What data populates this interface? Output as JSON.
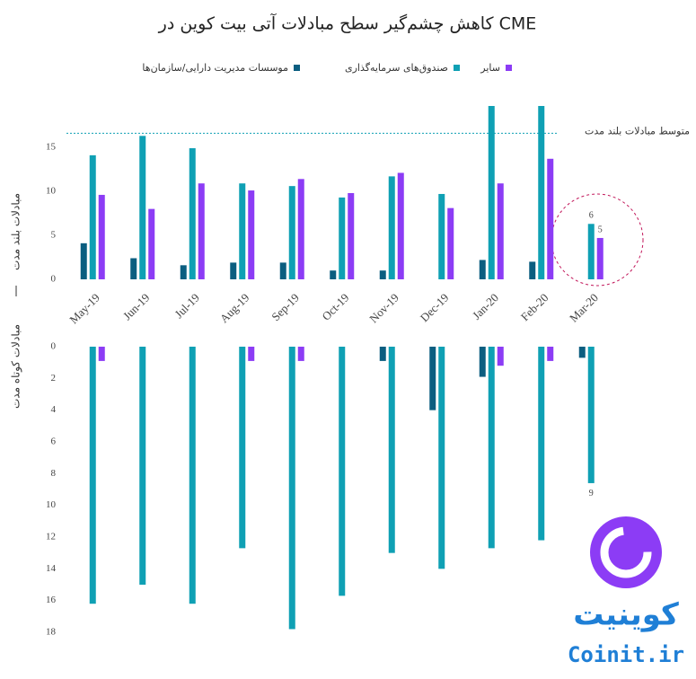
{
  "chart_data": [
    {
      "type": "bar",
      "title": "کاهش چشم‌گیر سطح مبادلات آتی بیت کوین در CME",
      "y_label": "مبادلات بلند مدت",
      "categories": [
        "May-19",
        "Jun-19",
        "Jul-19",
        "Aug-19",
        "Sep-19",
        "Oct-19",
        "Nov-19",
        "Dec-19",
        "Jan-20",
        "Feb-20",
        "Mar-20"
      ],
      "series": [
        {
          "name": "موسسات مدیریت دارایی/سازمان‌ها",
          "color": "#0b5e80",
          "values": [
            4.1,
            2.4,
            1.6,
            1.9,
            1.9,
            1.0,
            1.0,
            null,
            2.2,
            2.0,
            null
          ]
        },
        {
          "name": "صندوق‌های سرمایه‌گذاری",
          "color": "#0fa0b4",
          "values": [
            14.1,
            16.3,
            14.9,
            10.9,
            10.6,
            9.3,
            11.7,
            9.7,
            19.7,
            19.7,
            6.3
          ],
          "value_labels": [
            null,
            null,
            null,
            null,
            null,
            null,
            null,
            null,
            null,
            null,
            "6"
          ]
        },
        {
          "name": "سایر",
          "color": "#8c3cf5",
          "values": [
            9.6,
            8.0,
            10.9,
            10.1,
            11.4,
            9.8,
            12.1,
            8.1,
            10.9,
            13.7,
            4.7
          ],
          "value_labels": [
            null,
            null,
            null,
            null,
            null,
            null,
            null,
            null,
            null,
            null,
            "5"
          ]
        }
      ],
      "ylim": [
        0,
        19.7
      ],
      "yticks": [
        0,
        5,
        10,
        15
      ],
      "reference_line": {
        "value": 16.6,
        "label": "متوسط مبادلات بلند مدت"
      }
    },
    {
      "type": "bar",
      "y_label": "مبادلات کوتاه مدت",
      "inverted": true,
      "series": [
        {
          "color": "#0b5e80",
          "values": [
            null,
            null,
            null,
            null,
            null,
            null,
            0.9,
            4.0,
            1.9,
            null,
            0.7
          ]
        },
        {
          "color": "#0fa0b4",
          "values": [
            16.2,
            15.0,
            16.2,
            12.7,
            17.8,
            15.7,
            13.0,
            14.0,
            12.7,
            12.2,
            8.6
          ],
          "value_labels": [
            null,
            null,
            null,
            null,
            null,
            null,
            null,
            null,
            null,
            null,
            "9"
          ]
        },
        {
          "color": "#8c3cf5",
          "values": [
            0.9,
            null,
            null,
            0.9,
            0.9,
            null,
            null,
            null,
            1.2,
            0.9,
            null
          ]
        }
      ],
      "ylim": [
        0,
        18
      ],
      "yticks": [
        0,
        2,
        4,
        6,
        8,
        10,
        12,
        14,
        16,
        18
      ]
    }
  ],
  "logo": {
    "name": "کوینیت",
    "site": "Coinit.ir"
  }
}
